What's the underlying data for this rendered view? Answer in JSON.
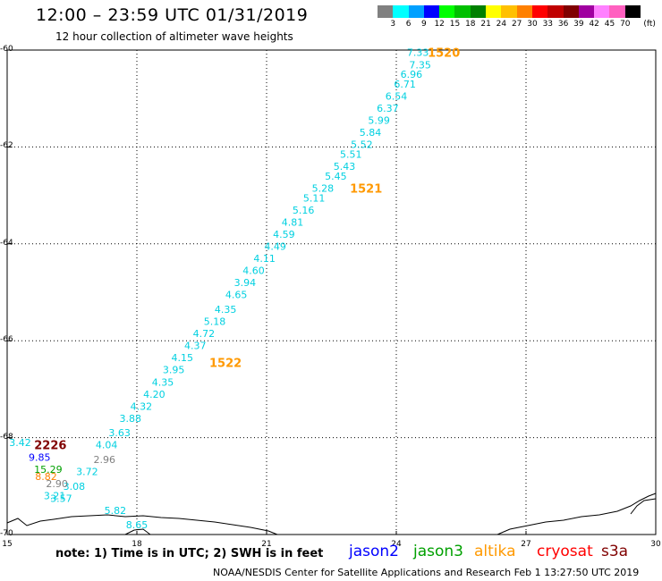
{
  "header": {
    "title": "12:00 – 23:59 UTC 01/31/2019",
    "subtitle": "12 hour collection of altimeter wave heights"
  },
  "legend": {
    "unit": "(ft)",
    "colors": [
      "#808080",
      "#00ffff",
      "#00a0ff",
      "#0000ff",
      "#00ff00",
      "#00c000",
      "#008000",
      "#ffff00",
      "#ffc000",
      "#ff8000",
      "#ff0000",
      "#c00000",
      "#800000",
      "#a000a0",
      "#ff80ff",
      "#ff60c0",
      "#000000"
    ],
    "labels": [
      "3",
      "6",
      "9",
      "12",
      "15",
      "18",
      "21",
      "24",
      "27",
      "30",
      "33",
      "36",
      "39",
      "42",
      "45",
      "70"
    ]
  },
  "axes": {
    "y_ticks": [
      "-60",
      "-62",
      "-64",
      "-66",
      "-68",
      "-70"
    ],
    "x_ticks": [
      "15",
      "18",
      "21",
      "24",
      "27",
      "30"
    ]
  },
  "chart_data": {
    "type": "scatter",
    "xlim": [
      15,
      30
    ],
    "ylim": [
      -70,
      -60
    ],
    "grid": true,
    "series": [
      {
        "name": "altika",
        "color": "#00d0e0",
        "points": [
          {
            "x": 24.5,
            "y": -60.05,
            "label": "7.33"
          },
          {
            "x": 24.55,
            "y": -60.3,
            "label": "7.35"
          },
          {
            "x": 24.35,
            "y": -60.5,
            "label": "6.96"
          },
          {
            "x": 24.2,
            "y": -60.7,
            "label": "6.71"
          },
          {
            "x": 24.0,
            "y": -60.95,
            "label": "6.54"
          },
          {
            "x": 23.8,
            "y": -61.2,
            "label": "6.37"
          },
          {
            "x": 23.6,
            "y": -61.45,
            "label": "5.99"
          },
          {
            "x": 23.4,
            "y": -61.7,
            "label": "5.84"
          },
          {
            "x": 23.2,
            "y": -61.95,
            "label": "5.52"
          },
          {
            "x": 22.95,
            "y": -62.15,
            "label": "5.51"
          },
          {
            "x": 22.8,
            "y": -62.4,
            "label": "5.43"
          },
          {
            "x": 22.6,
            "y": -62.6,
            "label": "5.45"
          },
          {
            "x": 22.3,
            "y": -62.85,
            "label": "5.28"
          },
          {
            "x": 22.1,
            "y": -63.05,
            "label": "5.11"
          },
          {
            "x": 21.85,
            "y": -63.3,
            "label": "5.16"
          },
          {
            "x": 21.6,
            "y": -63.55,
            "label": "4.81"
          },
          {
            "x": 21.4,
            "y": -63.8,
            "label": "4.59"
          },
          {
            "x": 21.2,
            "y": -64.05,
            "label": "4.49"
          },
          {
            "x": 20.95,
            "y": -64.3,
            "label": "4.11"
          },
          {
            "x": 20.7,
            "y": -64.55,
            "label": "4.60"
          },
          {
            "x": 20.5,
            "y": -64.8,
            "label": "3.94"
          },
          {
            "x": 20.3,
            "y": -65.05,
            "label": "4.65"
          },
          {
            "x": 20.05,
            "y": -65.35,
            "label": "4.35"
          },
          {
            "x": 19.8,
            "y": -65.6,
            "label": "5.18"
          },
          {
            "x": 19.55,
            "y": -65.85,
            "label": "4.72"
          },
          {
            "x": 19.35,
            "y": -66.1,
            "label": "4.37"
          },
          {
            "x": 19.05,
            "y": -66.35,
            "label": "4.15"
          },
          {
            "x": 18.85,
            "y": -66.6,
            "label": "3.95"
          },
          {
            "x": 18.6,
            "y": -66.85,
            "label": "4.35"
          },
          {
            "x": 18.4,
            "y": -67.1,
            "label": "4.20"
          },
          {
            "x": 18.1,
            "y": -67.35,
            "label": "4.32"
          },
          {
            "x": 17.85,
            "y": -67.6,
            "label": "3.88"
          },
          {
            "x": 17.6,
            "y": -67.9,
            "label": "3.63"
          },
          {
            "x": 17.3,
            "y": -68.15,
            "label": "4.04"
          },
          {
            "x": 16.85,
            "y": -68.7,
            "label": "3.72"
          },
          {
            "x": 16.55,
            "y": -69.0,
            "label": "3.08"
          },
          {
            "x": 16.25,
            "y": -69.25,
            "label": "3.57"
          },
          {
            "x": 15.3,
            "y": -68.1,
            "label": "3.42"
          },
          {
            "x": 16.1,
            "y": -69.2,
            "label": "3.21"
          },
          {
            "x": 17.5,
            "y": -69.5,
            "label": "5.82"
          },
          {
            "x": 18.0,
            "y": -69.8,
            "label": "8.65"
          }
        ]
      },
      {
        "name": "jason2",
        "color": "#0000ff",
        "points": [
          {
            "x": 15.75,
            "y": -68.4,
            "label": "9.85"
          }
        ]
      },
      {
        "name": "jason3",
        "color": "#00a000",
        "points": [
          {
            "x": 15.95,
            "y": -68.65,
            "label": "15.29"
          }
        ]
      },
      {
        "name": "cryosat",
        "color": "#808080",
        "points": [
          {
            "x": 16.15,
            "y": -68.95,
            "label": "2.90"
          },
          {
            "x": 17.25,
            "y": -68.45,
            "label": "2.96"
          }
        ]
      },
      {
        "name": "s3a",
        "color": "#ff8000",
        "points": [
          {
            "x": 15.9,
            "y": -68.8,
            "label": "8.82"
          }
        ]
      }
    ],
    "time_labels": [
      {
        "x": 25.1,
        "y": -60.05,
        "label": "1520",
        "color": "#ff9900"
      },
      {
        "x": 23.3,
        "y": -62.85,
        "label": "1521",
        "color": "#ff9900"
      },
      {
        "x": 20.05,
        "y": -66.45,
        "label": "1522",
        "color": "#ff9900"
      },
      {
        "x": 16.0,
        "y": -68.15,
        "label": "2226",
        "color": "#800000"
      }
    ]
  },
  "notes": {
    "note": "note:  1) Time is in UTC;  2) SWH is in feet",
    "satellites": [
      {
        "name": "jason2",
        "color": "#0000ff"
      },
      {
        "name": "jason3",
        "color": "#00a000"
      },
      {
        "name": "altika",
        "color": "#ff9900"
      },
      {
        "name": "cryosat",
        "color": "#ff0000"
      },
      {
        "name": "s3a",
        "color": "#800000"
      }
    ],
    "footer": "NOAA/NESDIS Center for Satellite Applications and Research     Feb  1 13:27:50 UTC 2019"
  }
}
